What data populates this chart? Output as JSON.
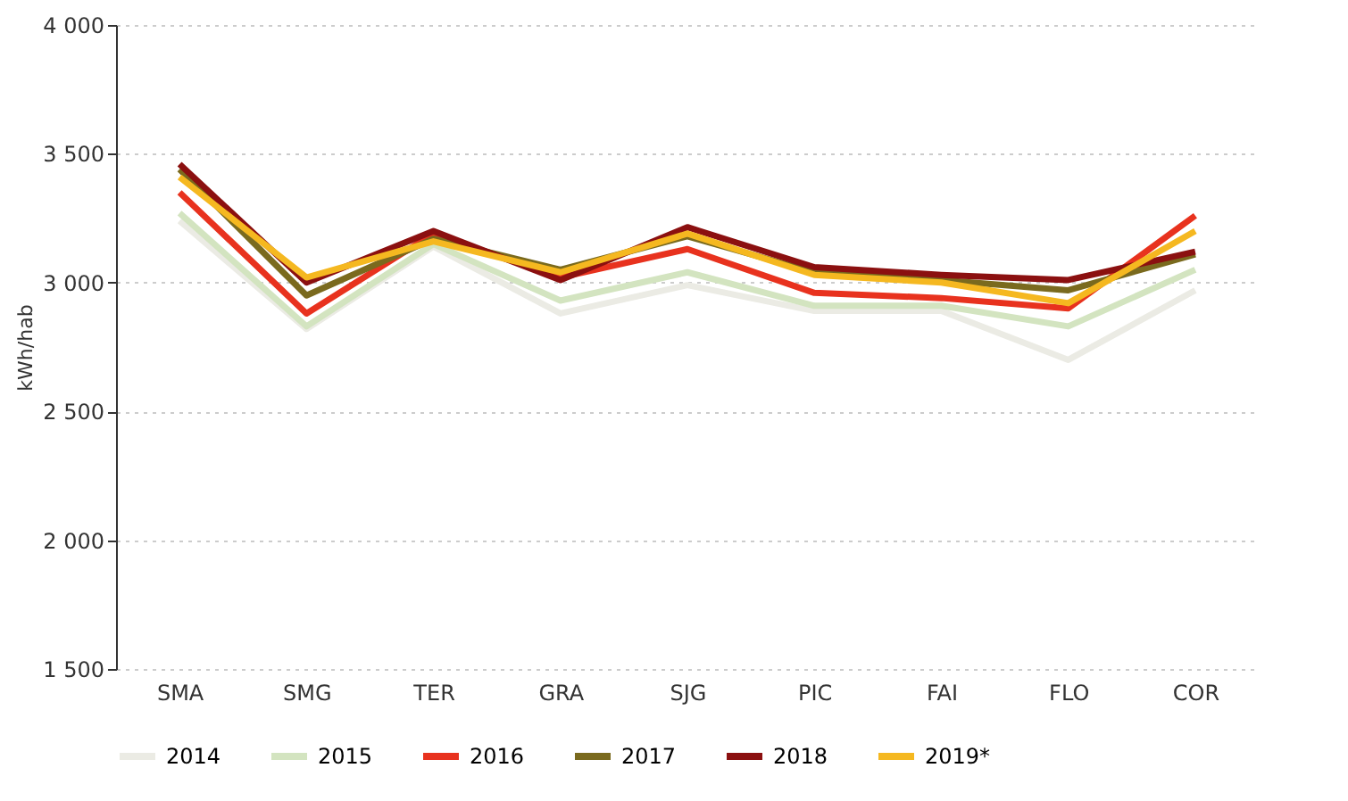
{
  "chart_data": {
    "type": "line",
    "ylabel": "kWh/hab",
    "categories": [
      "SMA",
      "SMG",
      "TER",
      "GRA",
      "SJG",
      "PIC",
      "FAI",
      "FLO",
      "COR"
    ],
    "ylim": [
      1500,
      4000
    ],
    "yticks": [
      {
        "value": 1500,
        "label": "1 500"
      },
      {
        "value": 2000,
        "label": "2 000"
      },
      {
        "value": 2500,
        "label": "2 500"
      },
      {
        "value": 3000,
        "label": "3 000"
      },
      {
        "value": 3500,
        "label": "3 500"
      },
      {
        "value": 4000,
        "label": "4 000"
      }
    ],
    "grid": "y",
    "legend": "bottom",
    "marker": "none",
    "line_style": "solid",
    "series": [
      {
        "name": "2014",
        "color": "#ebebe4",
        "values": [
          3240,
          2820,
          3140,
          2880,
          2990,
          2890,
          2890,
          2700,
          2970
        ]
      },
      {
        "name": "2015",
        "color": "#d3e4c0",
        "values": [
          3270,
          2830,
          3150,
          2930,
          3040,
          2910,
          2910,
          2830,
          3050
        ]
      },
      {
        "name": "2016",
        "color": "#e8321e",
        "values": [
          3350,
          2880,
          3190,
          3020,
          3130,
          2960,
          2940,
          2900,
          3260
        ]
      },
      {
        "name": "2017",
        "color": "#7a6a1e",
        "values": [
          3440,
          2950,
          3170,
          3050,
          3180,
          3040,
          3010,
          2970,
          3110
        ]
      },
      {
        "name": "2018",
        "color": "#8b1010",
        "values": [
          3460,
          3000,
          3200,
          3010,
          3215,
          3060,
          3030,
          3010,
          3120
        ]
      },
      {
        "name": "2019*",
        "color": "#f5b820",
        "values": [
          3410,
          3020,
          3160,
          3040,
          3190,
          3030,
          3000,
          2920,
          3200
        ]
      }
    ]
  }
}
